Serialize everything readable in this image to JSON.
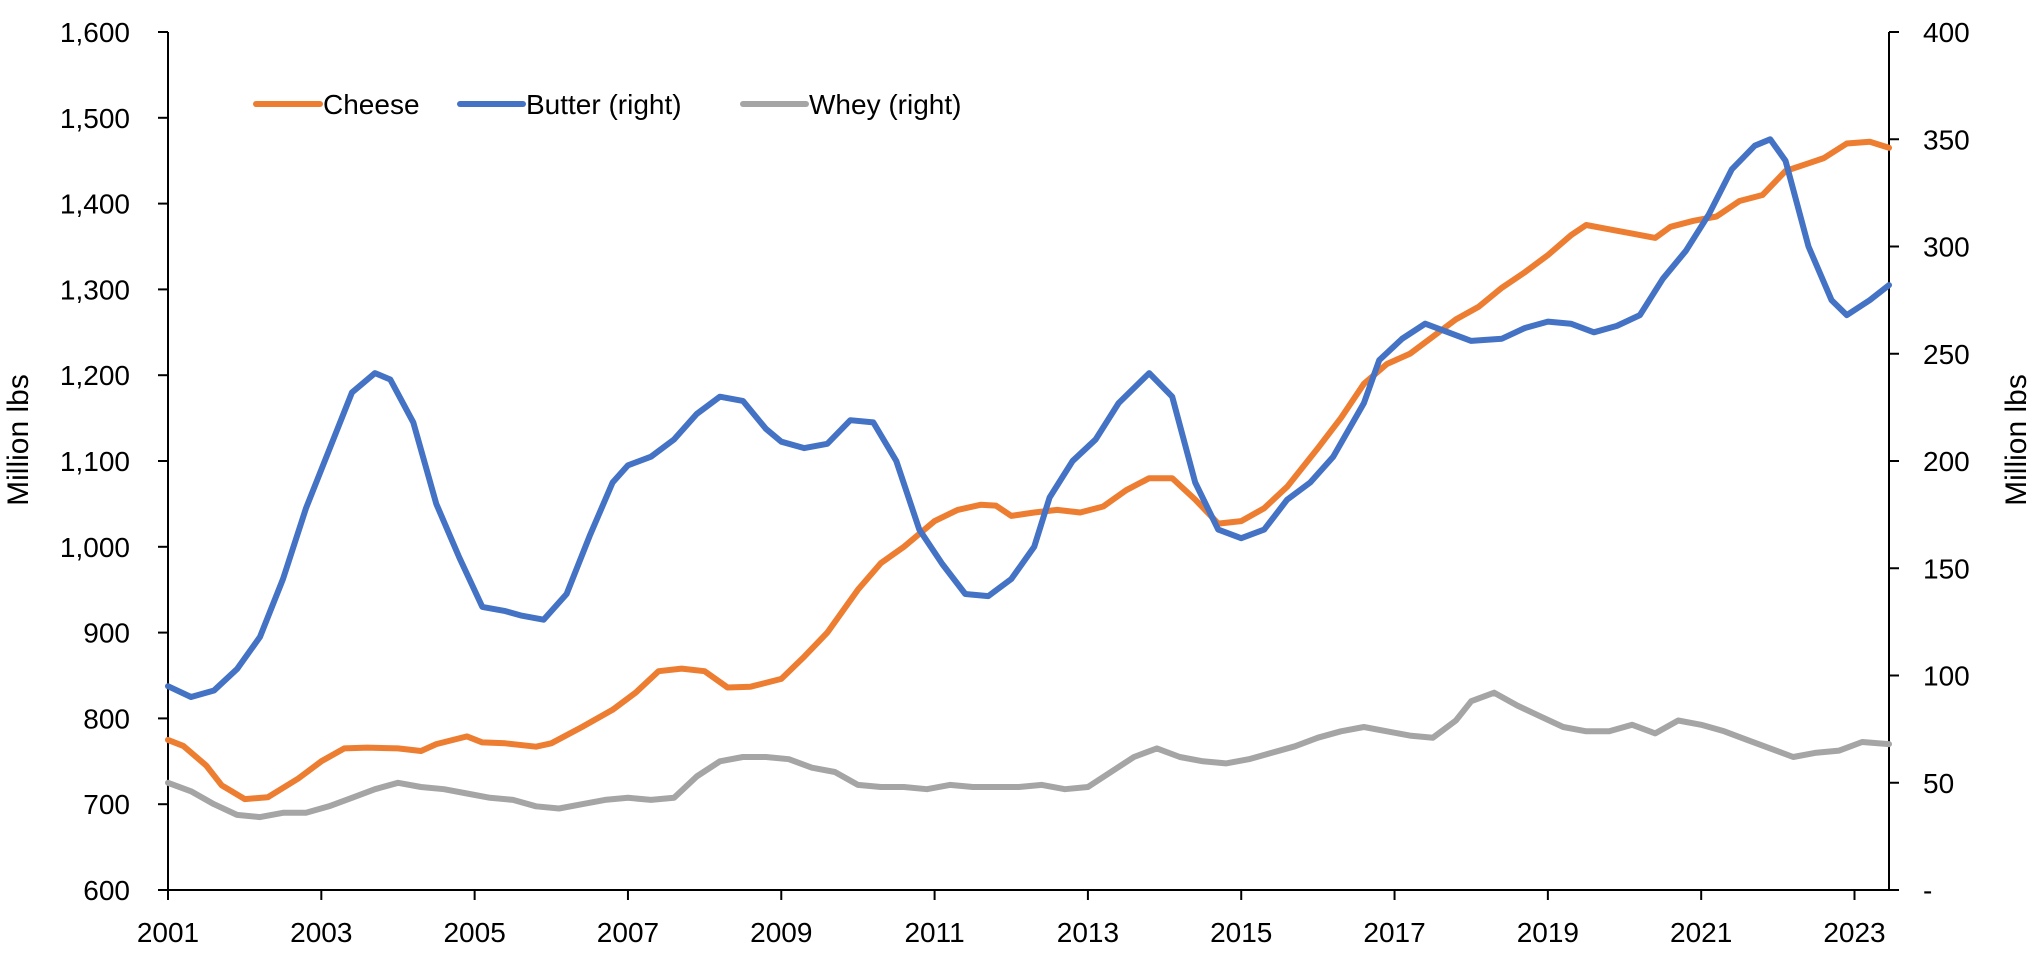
{
  "chart_data": {
    "type": "line",
    "title": "",
    "xlabel": "",
    "ylabel_left": "Million lbs",
    "ylabel_right": "Million lbs",
    "x_ticks": [
      "2001",
      "2003",
      "2005",
      "2007",
      "2009",
      "2011",
      "2013",
      "2015",
      "2017",
      "2019",
      "2021",
      "2023"
    ],
    "xlim": [
      2001,
      2023.45
    ],
    "ylim_left": [
      600,
      1600
    ],
    "ylim_right": [
      0,
      400
    ],
    "y_ticks_left": [
      "600",
      "700",
      "800",
      "900",
      "1,000",
      "1,100",
      "1,200",
      "1,300",
      "1,400",
      "1,500",
      "1,600"
    ],
    "y_ticks_right": [
      "-",
      "50",
      "100",
      "150",
      "200",
      "250",
      "300",
      "350",
      "400"
    ],
    "grid": false,
    "legend": "top-left",
    "series": [
      {
        "name": "Cheese",
        "axis": "left",
        "color": "#ED7D31",
        "points": [
          [
            2001.0,
            775
          ],
          [
            2001.2,
            768
          ],
          [
            2001.5,
            745
          ],
          [
            2001.7,
            722
          ],
          [
            2002.0,
            706
          ],
          [
            2002.3,
            708
          ],
          [
            2002.7,
            730
          ],
          [
            2003.0,
            750
          ],
          [
            2003.3,
            765
          ],
          [
            2003.6,
            766
          ],
          [
            2004.0,
            765
          ],
          [
            2004.3,
            762
          ],
          [
            2004.5,
            770
          ],
          [
            2004.9,
            779
          ],
          [
            2005.1,
            772
          ],
          [
            2005.4,
            771
          ],
          [
            2005.8,
            767
          ],
          [
            2006.0,
            771
          ],
          [
            2006.4,
            790
          ],
          [
            2006.8,
            810
          ],
          [
            2007.1,
            830
          ],
          [
            2007.4,
            855
          ],
          [
            2007.7,
            858
          ],
          [
            2008.0,
            855
          ],
          [
            2008.3,
            836
          ],
          [
            2008.6,
            837
          ],
          [
            2009.0,
            846
          ],
          [
            2009.3,
            872
          ],
          [
            2009.6,
            900
          ],
          [
            2010.0,
            950
          ],
          [
            2010.3,
            981
          ],
          [
            2010.6,
            1000
          ],
          [
            2011.0,
            1030
          ],
          [
            2011.3,
            1043
          ],
          [
            2011.6,
            1049
          ],
          [
            2011.8,
            1048
          ],
          [
            2012.0,
            1036
          ],
          [
            2012.3,
            1040
          ],
          [
            2012.6,
            1043
          ],
          [
            2012.9,
            1040
          ],
          [
            2013.2,
            1047
          ],
          [
            2013.5,
            1066
          ],
          [
            2013.8,
            1080
          ],
          [
            2014.1,
            1080
          ],
          [
            2014.4,
            1055
          ],
          [
            2014.7,
            1027
          ],
          [
            2015.0,
            1030
          ],
          [
            2015.3,
            1045
          ],
          [
            2015.6,
            1070
          ],
          [
            2016.0,
            1115
          ],
          [
            2016.3,
            1150
          ],
          [
            2016.6,
            1190
          ],
          [
            2016.9,
            1213
          ],
          [
            2017.2,
            1225
          ],
          [
            2017.5,
            1245
          ],
          [
            2017.8,
            1265
          ],
          [
            2018.1,
            1280
          ],
          [
            2018.4,
            1302
          ],
          [
            2018.7,
            1320
          ],
          [
            2019.0,
            1340
          ],
          [
            2019.3,
            1363
          ],
          [
            2019.5,
            1375
          ],
          [
            2019.8,
            1370
          ],
          [
            2020.1,
            1365
          ],
          [
            2020.4,
            1360
          ],
          [
            2020.6,
            1373
          ],
          [
            2020.9,
            1380
          ],
          [
            2021.2,
            1385
          ],
          [
            2021.5,
            1403
          ],
          [
            2021.8,
            1410
          ],
          [
            2022.1,
            1438
          ],
          [
            2022.4,
            1447
          ],
          [
            2022.6,
            1453
          ],
          [
            2022.9,
            1470
          ],
          [
            2023.2,
            1472
          ],
          [
            2023.45,
            1465
          ]
        ]
      },
      {
        "name": "Butter (right)",
        "axis": "right",
        "color": "#4472C4",
        "points": [
          [
            2001.0,
            95
          ],
          [
            2001.3,
            90
          ],
          [
            2001.6,
            93
          ],
          [
            2001.9,
            103
          ],
          [
            2002.2,
            118
          ],
          [
            2002.5,
            145
          ],
          [
            2002.8,
            178
          ],
          [
            2003.1,
            205
          ],
          [
            2003.4,
            232
          ],
          [
            2003.7,
            241
          ],
          [
            2003.9,
            238
          ],
          [
            2004.2,
            218
          ],
          [
            2004.5,
            180
          ],
          [
            2004.8,
            155
          ],
          [
            2005.1,
            132
          ],
          [
            2005.4,
            130
          ],
          [
            2005.6,
            128
          ],
          [
            2005.9,
            126
          ],
          [
            2006.2,
            138
          ],
          [
            2006.5,
            165
          ],
          [
            2006.8,
            190
          ],
          [
            2007.0,
            198
          ],
          [
            2007.3,
            202
          ],
          [
            2007.6,
            210
          ],
          [
            2007.9,
            222
          ],
          [
            2008.2,
            230
          ],
          [
            2008.5,
            228
          ],
          [
            2008.8,
            215
          ],
          [
            2009.0,
            209
          ],
          [
            2009.3,
            206
          ],
          [
            2009.6,
            208
          ],
          [
            2009.9,
            219
          ],
          [
            2010.2,
            218
          ],
          [
            2010.5,
            200
          ],
          [
            2010.8,
            168
          ],
          [
            2011.1,
            152
          ],
          [
            2011.4,
            138
          ],
          [
            2011.7,
            137
          ],
          [
            2012.0,
            145
          ],
          [
            2012.3,
            160
          ],
          [
            2012.5,
            183
          ],
          [
            2012.8,
            200
          ],
          [
            2013.1,
            210
          ],
          [
            2013.4,
            227
          ],
          [
            2013.8,
            241
          ],
          [
            2014.1,
            230
          ],
          [
            2014.4,
            190
          ],
          [
            2014.7,
            168
          ],
          [
            2015.0,
            164
          ],
          [
            2015.3,
            168
          ],
          [
            2015.6,
            182
          ],
          [
            2015.9,
            190
          ],
          [
            2016.2,
            202
          ],
          [
            2016.6,
            227
          ],
          [
            2016.8,
            247
          ],
          [
            2017.1,
            257
          ],
          [
            2017.4,
            264
          ],
          [
            2017.7,
            260
          ],
          [
            2018.0,
            256
          ],
          [
            2018.4,
            257
          ],
          [
            2018.7,
            262
          ],
          [
            2019.0,
            265
          ],
          [
            2019.3,
            264
          ],
          [
            2019.6,
            260
          ],
          [
            2019.9,
            263
          ],
          [
            2020.2,
            268
          ],
          [
            2020.5,
            285
          ],
          [
            2020.8,
            298
          ],
          [
            2021.1,
            315
          ],
          [
            2021.4,
            336
          ],
          [
            2021.7,
            347
          ],
          [
            2021.9,
            350
          ],
          [
            2022.1,
            340
          ],
          [
            2022.4,
            300
          ],
          [
            2022.7,
            275
          ],
          [
            2022.9,
            268
          ],
          [
            2023.2,
            275
          ],
          [
            2023.45,
            282
          ]
        ]
      },
      {
        "name": "Whey (right)",
        "axis": "right",
        "color": "#A5A5A5",
        "points": [
          [
            2001.0,
            50
          ],
          [
            2001.3,
            46
          ],
          [
            2001.6,
            40
          ],
          [
            2001.9,
            35
          ],
          [
            2002.2,
            34
          ],
          [
            2002.5,
            36
          ],
          [
            2002.8,
            36
          ],
          [
            2003.1,
            39
          ],
          [
            2003.4,
            43
          ],
          [
            2003.7,
            47
          ],
          [
            2004.0,
            50
          ],
          [
            2004.3,
            48
          ],
          [
            2004.6,
            47
          ],
          [
            2004.9,
            45
          ],
          [
            2005.2,
            43
          ],
          [
            2005.5,
            42
          ],
          [
            2005.8,
            39
          ],
          [
            2006.1,
            38
          ],
          [
            2006.4,
            40
          ],
          [
            2006.7,
            42
          ],
          [
            2007.0,
            43
          ],
          [
            2007.3,
            42
          ],
          [
            2007.6,
            43
          ],
          [
            2007.9,
            53
          ],
          [
            2008.2,
            60
          ],
          [
            2008.5,
            62
          ],
          [
            2008.8,
            62
          ],
          [
            2009.1,
            61
          ],
          [
            2009.4,
            57
          ],
          [
            2009.7,
            55
          ],
          [
            2010.0,
            49
          ],
          [
            2010.3,
            48
          ],
          [
            2010.6,
            48
          ],
          [
            2010.9,
            47
          ],
          [
            2011.2,
            49
          ],
          [
            2011.5,
            48
          ],
          [
            2011.8,
            48
          ],
          [
            2012.1,
            48
          ],
          [
            2012.4,
            49
          ],
          [
            2012.7,
            47
          ],
          [
            2013.0,
            48
          ],
          [
            2013.3,
            55
          ],
          [
            2013.6,
            62
          ],
          [
            2013.9,
            66
          ],
          [
            2014.2,
            62
          ],
          [
            2014.5,
            60
          ],
          [
            2014.8,
            59
          ],
          [
            2015.1,
            61
          ],
          [
            2015.4,
            64
          ],
          [
            2015.7,
            67
          ],
          [
            2016.0,
            71
          ],
          [
            2016.3,
            74
          ],
          [
            2016.6,
            76
          ],
          [
            2016.9,
            74
          ],
          [
            2017.2,
            72
          ],
          [
            2017.5,
            71
          ],
          [
            2017.8,
            79
          ],
          [
            2018.0,
            88
          ],
          [
            2018.3,
            92
          ],
          [
            2018.6,
            86
          ],
          [
            2018.9,
            81
          ],
          [
            2019.2,
            76
          ],
          [
            2019.5,
            74
          ],
          [
            2019.8,
            74
          ],
          [
            2020.1,
            77
          ],
          [
            2020.4,
            73
          ],
          [
            2020.7,
            79
          ],
          [
            2021.0,
            77
          ],
          [
            2021.3,
            74
          ],
          [
            2021.6,
            70
          ],
          [
            2021.9,
            66
          ],
          [
            2022.2,
            62
          ],
          [
            2022.5,
            64
          ],
          [
            2022.8,
            65
          ],
          [
            2023.1,
            69
          ],
          [
            2023.45,
            68
          ]
        ]
      }
    ]
  }
}
